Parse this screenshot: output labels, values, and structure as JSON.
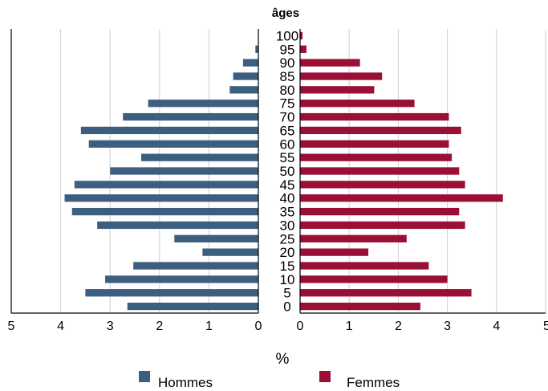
{
  "chart_data": {
    "type": "bar",
    "orientation": "horizontal",
    "title": "âges",
    "xlabel": "%",
    "ylabel": "",
    "categories": [
      "0",
      "5",
      "10",
      "15",
      "20",
      "25",
      "30",
      "35",
      "40",
      "45",
      "50",
      "55",
      "60",
      "65",
      "70",
      "75",
      "80",
      "85",
      "90",
      "95",
      "100"
    ],
    "series": [
      {
        "name": "Hommes",
        "color": "#3d5f7f",
        "side": "left",
        "values": [
          2.65,
          3.5,
          3.1,
          2.53,
          1.13,
          1.7,
          3.26,
          3.77,
          3.92,
          3.72,
          3.0,
          2.37,
          3.43,
          3.59,
          2.74,
          2.23,
          0.58,
          0.51,
          0.31,
          0.06,
          0.0
        ]
      },
      {
        "name": "Femmes",
        "color": "#9a0f34",
        "side": "right",
        "values": [
          2.45,
          3.49,
          3.0,
          2.62,
          1.39,
          2.17,
          3.36,
          3.24,
          4.13,
          3.36,
          3.24,
          3.09,
          3.03,
          3.28,
          3.03,
          2.33,
          1.51,
          1.67,
          1.22,
          0.13,
          0.05
        ]
      }
    ],
    "xlim": [
      0,
      5
    ],
    "xticks": [
      "0",
      "1",
      "2",
      "3",
      "4",
      "5"
    ],
    "grid": true,
    "legend": "bottom"
  }
}
